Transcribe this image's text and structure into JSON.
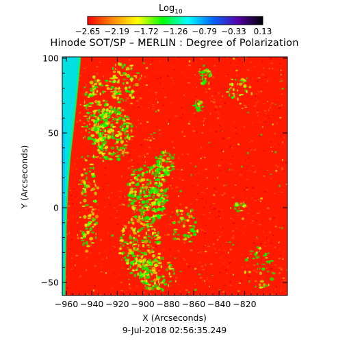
{
  "colorbar": {
    "title_main": "Log",
    "title_sub": "10",
    "ticks": [
      "−2.65",
      "−2.19",
      "−1.72",
      "−1.26",
      "−0.79",
      "−0.33",
      "0.13"
    ],
    "gradient_colors": [
      "#ff0000",
      "#ff8800",
      "#ffff00",
      "#00ff00",
      "#00ffff",
      "#0066ff",
      "#5500aa",
      "#000000"
    ]
  },
  "title": "Hinode SOT/SP – MERLIN : Degree of Polarization",
  "x_axis": {
    "label": "X (Arcseconds)",
    "ticks": [
      "−960",
      "−940",
      "−920",
      "−900",
      "−880",
      "−860",
      "−840",
      "−820"
    ]
  },
  "y_axis": {
    "label": "Y (Arcseconds)",
    "ticks": [
      "100",
      "50",
      "0",
      "−50"
    ]
  },
  "timestamp": "9-Jul-2018 02:56:35.249",
  "map": {
    "background_color": "#ff1a00",
    "limb_colors": [
      "#00e0e0",
      "#00c8ff",
      "#00ff60"
    ],
    "patch_colors": [
      "#00ff00",
      "#b6ff00",
      "#ffe600"
    ]
  }
}
